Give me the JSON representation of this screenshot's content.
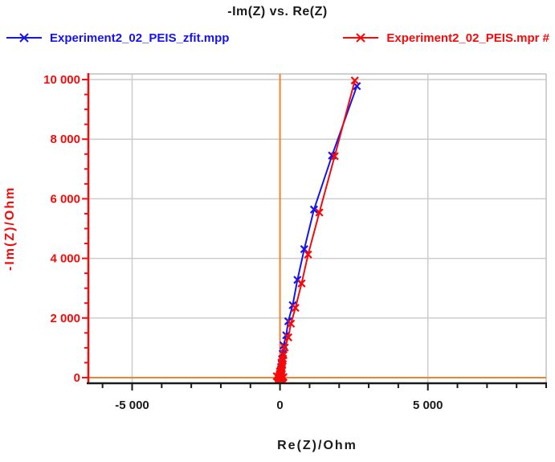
{
  "title": "-Im(Z) vs. Re(Z)",
  "legend": {
    "items": [
      {
        "label": "Experiment2_02_PEIS_zfit.mpp",
        "color": "#1414f0"
      },
      {
        "label": "Experiment2_02_PEIS.mpr #",
        "color": "#f50a0a"
      }
    ]
  },
  "axes": {
    "x_title": "Re(Z)/Ohm",
    "y_title": "-Im(Z)/Ohm"
  },
  "colors": {
    "series_fit": "#1414f0",
    "series_data": "#f50a0a",
    "zero_line": "#f08233",
    "grid": "#cccccc",
    "border": "#c0c0c0",
    "axis_left": "#f50a0a",
    "axis_bottom": "#1a1a1a",
    "y_tick_label": "#f50a0a",
    "x_tick_label": "#1a1a1a"
  },
  "chart_data": {
    "type": "scatter",
    "title": "-Im(Z) vs. Re(Z)",
    "xlabel": "Re(Z)/Ohm",
    "ylabel": "-Im(Z)/Ohm",
    "xlim": [
      -6480,
      9000
    ],
    "ylim": [
      -190,
      10190
    ],
    "x_ticks": [
      {
        "value": -5000,
        "label": "-5 000"
      },
      {
        "value": 0,
        "label": "0"
      },
      {
        "value": 5000,
        "label": "5 000"
      }
    ],
    "y_ticks": [
      {
        "value": 0,
        "label": "0"
      },
      {
        "value": 2000,
        "label": "2 000"
      },
      {
        "value": 4000,
        "label": "4 000"
      },
      {
        "value": 6000,
        "label": "6 000"
      },
      {
        "value": 8000,
        "label": "8 000"
      },
      {
        "value": 10000,
        "label": "10 000"
      }
    ],
    "x_minor_step": 1000,
    "y_minor_step": 500,
    "grid": true,
    "zero_lines": {
      "x": 0,
      "y": 0
    },
    "legend_position": "top",
    "series": [
      {
        "name": "Experiment2_02_PEIS_zfit.mpp",
        "color": "#1414f0",
        "marker": "x",
        "points": [
          [
            2600,
            9780
          ],
          [
            1760,
            7450
          ],
          [
            1150,
            5640
          ],
          [
            820,
            4310
          ],
          [
            590,
            3280
          ],
          [
            430,
            2430
          ],
          [
            280,
            1890
          ],
          [
            210,
            1420
          ],
          [
            120,
            1080
          ],
          [
            90,
            800
          ],
          [
            70,
            620
          ],
          [
            55,
            470
          ],
          [
            42,
            360
          ],
          [
            32,
            270
          ],
          [
            25,
            205
          ],
          [
            18,
            152
          ],
          [
            13,
            112
          ],
          [
            9,
            80
          ],
          [
            6,
            55
          ],
          [
            4,
            36
          ],
          [
            3,
            22
          ],
          [
            2,
            12
          ],
          [
            1,
            4
          ]
        ]
      },
      {
        "name": "Experiment2_02_PEIS.mpr #",
        "color": "#f50a0a",
        "marker": "x",
        "points": [
          [
            2530,
            9970
          ],
          [
            1850,
            7430
          ],
          [
            1330,
            5540
          ],
          [
            950,
            4130
          ],
          [
            730,
            3160
          ],
          [
            520,
            2340
          ],
          [
            370,
            1810
          ],
          [
            280,
            1350
          ],
          [
            160,
            1010
          ],
          [
            118,
            755
          ],
          [
            92,
            565
          ],
          [
            72,
            425
          ],
          [
            56,
            318
          ],
          [
            44,
            238
          ],
          [
            34,
            175
          ],
          [
            26,
            128
          ],
          [
            20,
            92
          ],
          [
            15,
            62
          ],
          [
            11,
            38
          ],
          [
            8,
            18
          ],
          [
            5,
            2
          ],
          [
            -12,
            -22
          ],
          [
            22,
            -38
          ],
          [
            -35,
            -12
          ],
          [
            45,
            -52
          ],
          [
            -60,
            8
          ],
          [
            70,
            -28
          ],
          [
            -85,
            28
          ],
          [
            95,
            -8
          ],
          [
            -110,
            48
          ],
          [
            120,
            18
          ],
          [
            -45,
            -42
          ],
          [
            55,
            -18
          ],
          [
            -20,
            62
          ],
          [
            30,
            85
          ],
          [
            -8,
            115
          ],
          [
            18,
            148
          ],
          [
            42,
            175
          ],
          [
            -2,
            205
          ],
          [
            28,
            248
          ],
          [
            62,
            298
          ],
          [
            35,
            355
          ],
          [
            78,
            425
          ],
          [
            52,
            505
          ],
          [
            98,
            640
          ]
        ]
      }
    ]
  }
}
